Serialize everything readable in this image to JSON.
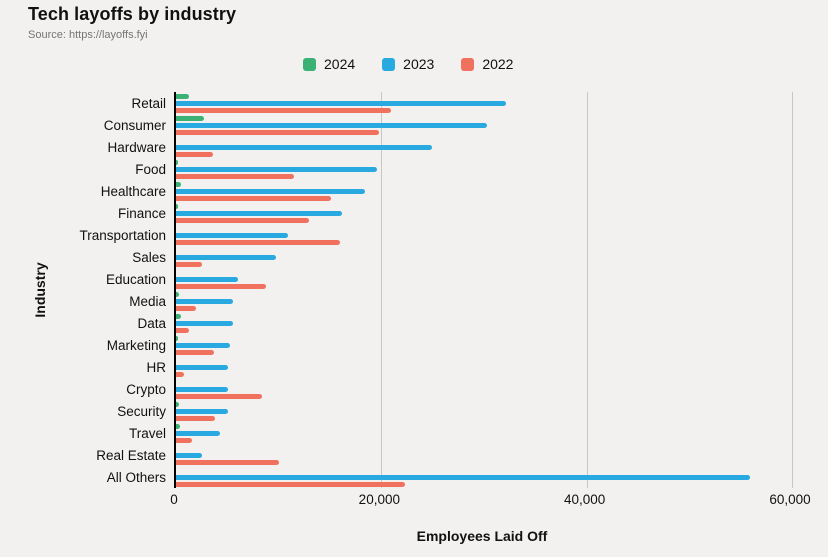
{
  "header": {
    "title": "Tech layoffs by industry",
    "source": "Source: https://layoffs.fyi"
  },
  "axes": {
    "xlabel": "Employees Laid Off",
    "ylabel": "Industry"
  },
  "colors": {
    "background": "#f2f1ef",
    "green_2024": "#3bb273",
    "blue_2023": "#28a9e0",
    "red_2022": "#f0715d",
    "gridline": "#c7c7c5",
    "axis_line": "#000000"
  },
  "chart_data": {
    "type": "bar",
    "orientation": "horizontal",
    "title": "Tech layoffs by industry",
    "xlabel": "Employees Laid Off",
    "ylabel": "Industry",
    "xlim": [
      0,
      60000
    ],
    "xticks": [
      0,
      20000,
      40000,
      60000
    ],
    "xtick_labels": [
      "0",
      "20,000",
      "40,000",
      "60,000"
    ],
    "grid": "vertical",
    "legend_position": "top",
    "categories": [
      "Retail",
      "Consumer",
      "Hardware",
      "Food",
      "Healthcare",
      "Finance",
      "Transportation",
      "Sales",
      "Education",
      "Media",
      "Data",
      "Marketing",
      "HR",
      "Crypto",
      "Security",
      "Travel",
      "Real Estate",
      "All Others"
    ],
    "series": [
      {
        "name": "2024",
        "color": "#3bb273",
        "values": [
          1300,
          2700,
          0,
          200,
          450,
          150,
          0,
          0,
          0,
          250,
          450,
          200,
          0,
          0,
          250,
          400,
          0,
          0
        ]
      },
      {
        "name": "2023",
        "color": "#28a9e0",
        "values": [
          32100,
          30300,
          24900,
          19600,
          18400,
          16200,
          10900,
          9700,
          6000,
          5600,
          5600,
          5300,
          5100,
          5100,
          5100,
          4300,
          2500,
          55900
        ]
      },
      {
        "name": "2022",
        "color": "#f0715d",
        "values": [
          20900,
          19800,
          3600,
          11500,
          15100,
          13000,
          16000,
          2500,
          8800,
          1900,
          1300,
          3700,
          800,
          8400,
          3800,
          1600,
          10000,
          22300
        ]
      }
    ]
  }
}
